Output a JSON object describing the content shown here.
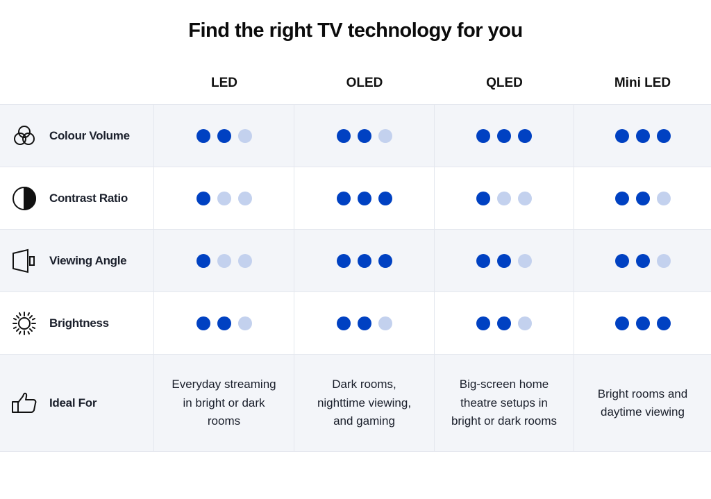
{
  "title": "Find the right TV technology for you",
  "columns": [
    "LED",
    "OLED",
    "QLED",
    "Mini LED"
  ],
  "colors": {
    "dot_on": "#0041c2",
    "dot_off": "#c3d1ee",
    "row_alt": "#f3f5f9"
  },
  "rating_max": 3,
  "rows": [
    {
      "label": "Colour Volume",
      "icon": "colour-venn-icon",
      "ratings": [
        2,
        2,
        3,
        3
      ]
    },
    {
      "label": "Contrast Ratio",
      "icon": "contrast-half-circle-icon",
      "ratings": [
        1,
        3,
        1,
        2
      ]
    },
    {
      "label": "Viewing Angle",
      "icon": "viewing-angle-icon",
      "ratings": [
        1,
        3,
        2,
        2
      ]
    },
    {
      "label": "Brightness",
      "icon": "sun-icon",
      "ratings": [
        2,
        2,
        2,
        3
      ]
    }
  ],
  "ideal_for": {
    "label": "Ideal For",
    "icon": "thumbs-up-icon",
    "values": [
      "Everyday streaming in bright or dark rooms",
      "Dark rooms, nighttime viewing, and gaming",
      "Big-screen home theatre setups in bright or dark rooms",
      "Bright rooms and daytime viewing"
    ]
  }
}
